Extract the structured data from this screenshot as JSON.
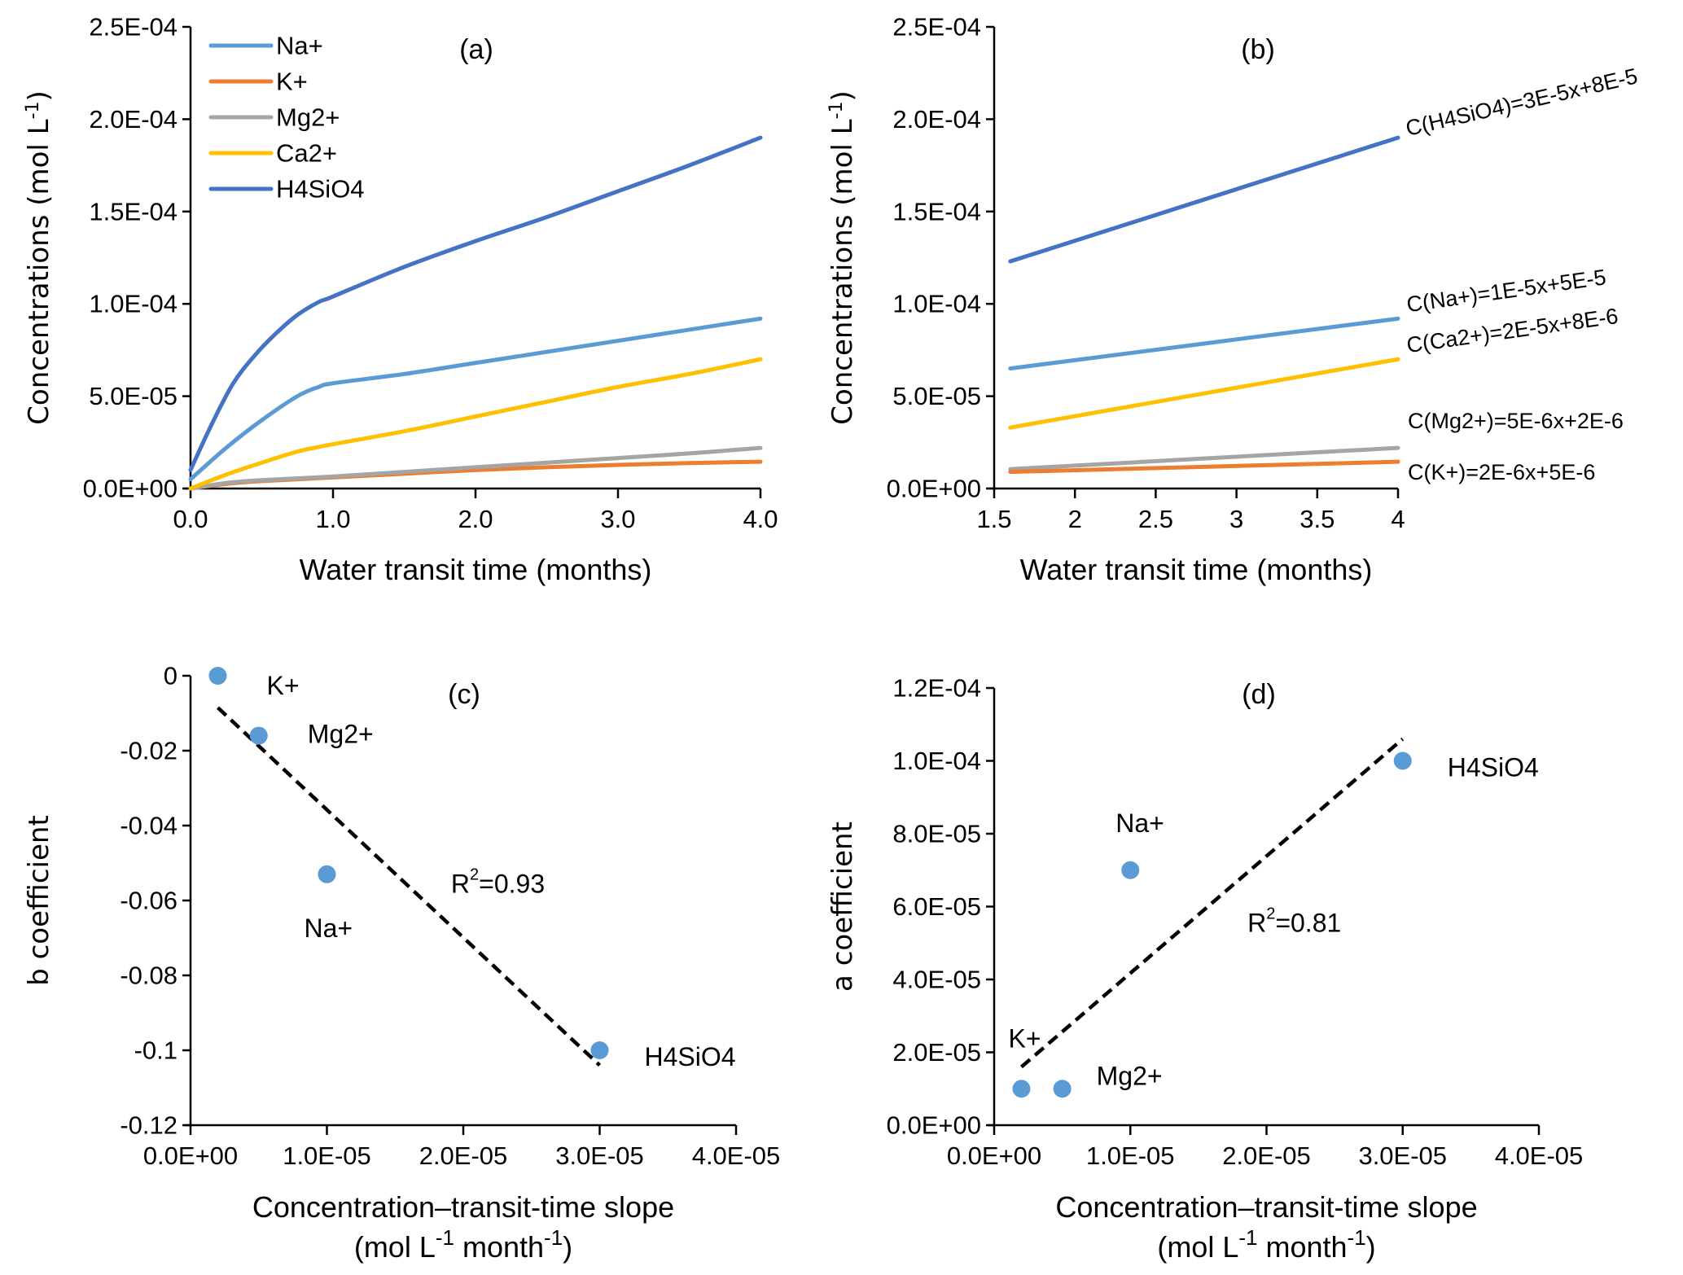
{
  "chart_data": [
    {
      "panel": "(a)",
      "type": "line",
      "title": "(a)",
      "xlabel": "Water transit time (months)",
      "ylabel": "Concentrations (mol L",
      "ylabel_sup": "-1",
      "ylabel_close": ")",
      "xlim": [
        0,
        4
      ],
      "ylim": [
        0,
        0.00025
      ],
      "xticks": [
        0,
        1,
        2,
        3,
        4
      ],
      "xtick_labels": [
        "0.0",
        "1.0",
        "2.0",
        "3.0",
        "4.0"
      ],
      "yticks": [
        0,
        5e-05,
        0.0001,
        0.00015,
        0.0002,
        0.00025
      ],
      "ytick_labels": [
        "0.0E+00",
        "5.0E-05",
        "1.0E-04",
        "1.5E-04",
        "2.0E-04",
        "2.5E-04"
      ],
      "grid": false,
      "legend_position": "top-left",
      "series": [
        {
          "name": "Na+",
          "color": "#5B9BD5",
          "x": [
            0,
            0.25,
            0.5,
            0.75,
            0.9,
            1.0,
            1.5,
            2.0,
            2.5,
            3.0,
            3.5,
            4.0
          ],
          "y": [
            5e-06,
            2.2e-05,
            3.7e-05,
            5e-05,
            5.5e-05,
            5.7e-05,
            6.2e-05,
            6.8e-05,
            7.4e-05,
            8e-05,
            8.6e-05,
            9.2e-05
          ]
        },
        {
          "name": "K+",
          "color": "#ED7D31",
          "x": [
            0,
            0.25,
            0.5,
            1.0,
            1.5,
            2.0,
            2.5,
            3.0,
            3.5,
            4.0
          ],
          "y": [
            0,
            2.5e-06,
            4e-06,
            6e-06,
            8e-06,
            1e-05,
            1.15e-05,
            1.28e-05,
            1.38e-05,
            1.45e-05
          ]
        },
        {
          "name": "Mg2+",
          "color": "#A5A5A5",
          "x": [
            0,
            0.25,
            0.5,
            1.0,
            1.5,
            2.0,
            2.5,
            3.0,
            3.5,
            4.0
          ],
          "y": [
            0,
            3e-06,
            4.5e-06,
            6.5e-06,
            9e-06,
            1.15e-05,
            1.4e-05,
            1.65e-05,
            1.9e-05,
            2.2e-05
          ]
        },
        {
          "name": "Ca2+",
          "color": "#FFC000",
          "x": [
            0,
            0.25,
            0.5,
            0.75,
            0.9,
            1.0,
            1.5,
            2.0,
            2.5,
            3.0,
            3.5,
            4.0
          ],
          "y": [
            0,
            7.5e-06,
            1.4e-05,
            2e-05,
            2.25e-05,
            2.4e-05,
            3.1e-05,
            3.9e-05,
            4.7e-05,
            5.5e-05,
            6.2e-05,
            7e-05
          ]
        },
        {
          "name": "H4SiO4",
          "color": "#4472C4",
          "x": [
            0,
            0.15,
            0.3,
            0.45,
            0.6,
            0.75,
            0.9,
            1.0,
            1.5,
            2.0,
            2.5,
            3.0,
            3.5,
            4.0
          ],
          "y": [
            1e-05,
            3.5e-05,
            5.7e-05,
            7.2e-05,
            8.4e-05,
            9.4e-05,
            0.000101,
            0.000104,
            0.00012,
            0.000134,
            0.000147,
            0.000161,
            0.000175,
            0.00019
          ]
        }
      ]
    },
    {
      "panel": "(b)",
      "type": "line",
      "title": "(b)",
      "xlabel": "Water transit time (months)",
      "ylabel": "Concentrations (mol L",
      "ylabel_sup": "-1",
      "ylabel_close": ")",
      "xlim": [
        1.5,
        4
      ],
      "ylim": [
        0,
        0.00025
      ],
      "xticks": [
        1.5,
        2,
        2.5,
        3,
        3.5,
        4
      ],
      "xtick_labels": [
        "1.5",
        "2",
        "2.5",
        "3",
        "3.5",
        "4"
      ],
      "yticks": [
        0,
        5e-05,
        0.0001,
        0.00015,
        0.0002,
        0.00025
      ],
      "ytick_labels": [
        "0.0E+00",
        "5.0E-05",
        "1.0E-04",
        "1.5E-04",
        "2.0E-04",
        "2.5E-04"
      ],
      "grid": false,
      "series": [
        {
          "name": "H4SiO4",
          "color": "#4472C4",
          "x": [
            1.6,
            4.0
          ],
          "y": [
            0.000123,
            0.00019
          ],
          "equation": "C(H4SiO4)=3E-5x+8E-5"
        },
        {
          "name": "Na+",
          "color": "#5B9BD5",
          "x": [
            1.6,
            4.0
          ],
          "y": [
            6.5e-05,
            9.2e-05
          ],
          "equation": "C(Na+)=1E-5x+5E-5"
        },
        {
          "name": "Ca2+",
          "color": "#FFC000",
          "x": [
            1.6,
            4.0
          ],
          "y": [
            3.3e-05,
            7e-05
          ],
          "equation": "C(Ca2+)=2E-5x+8E-6"
        },
        {
          "name": "Mg2+",
          "color": "#A5A5A5",
          "x": [
            1.6,
            4.0
          ],
          "y": [
            1.05e-05,
            2.2e-05
          ],
          "equation": "C(Mg2+)=5E-6x+2E-6"
        },
        {
          "name": "K+",
          "color": "#ED7D31",
          "x": [
            1.6,
            4.0
          ],
          "y": [
            9e-06,
            1.45e-05
          ],
          "equation": "C(K+)=2E-6x+5E-6"
        }
      ]
    },
    {
      "panel": "(c)",
      "type": "scatter",
      "title": "(c)",
      "xlabel": "Concentration–transit-time slope",
      "xlabel2_pre": "(mol L",
      "xlabel2_sup1": "-1",
      "xlabel2_mid": " month",
      "xlabel2_sup2": "-1",
      "xlabel2_post": ")",
      "ylabel": "b coefficient",
      "xlim": [
        0,
        4e-05
      ],
      "ylim": [
        -0.12,
        0
      ],
      "xticks": [
        0,
        1e-05,
        2e-05,
        3e-05,
        4e-05
      ],
      "xtick_labels": [
        "0.0E+00",
        "1.0E-05",
        "2.0E-05",
        "3.0E-05",
        "4.0E-05"
      ],
      "yticks": [
        0,
        -0.02,
        -0.04,
        -0.06,
        -0.08,
        -0.1,
        -0.12
      ],
      "ytick_labels": [
        "0",
        "-0.02",
        "-0.04",
        "-0.06",
        "-0.08",
        "-0.1",
        "-0.12"
      ],
      "grid": false,
      "marker_color": "#5B9BD5",
      "points": [
        {
          "label": "K+",
          "x": 2e-06,
          "y": 0
        },
        {
          "label": "Mg2+",
          "x": 5e-06,
          "y": -0.016
        },
        {
          "label": "Na+",
          "x": 1e-05,
          "y": -0.053
        },
        {
          "label": "H4SiO4",
          "x": 3e-05,
          "y": -0.1
        }
      ],
      "trendline": {
        "x": [
          2e-06,
          3e-05
        ],
        "y": [
          -0.0085,
          -0.104
        ],
        "style": "dashed",
        "color": "#000000"
      },
      "r2_label": "R",
      "r2_sup": "2",
      "r2_value": "=0.93"
    },
    {
      "panel": "(d)",
      "type": "scatter",
      "title": "(d)",
      "xlabel": "Concentration–transit-time slope",
      "xlabel2_pre": "(mol L",
      "xlabel2_sup1": "-1",
      "xlabel2_mid": " month",
      "xlabel2_sup2": "-1",
      "xlabel2_post": ")",
      "ylabel": "a coefficient",
      "xlim": [
        0,
        4e-05
      ],
      "ylim": [
        0,
        0.00012
      ],
      "xticks": [
        0,
        1e-05,
        2e-05,
        3e-05,
        4e-05
      ],
      "xtick_labels": [
        "0.0E+00",
        "1.0E-05",
        "2.0E-05",
        "3.0E-05",
        "4.0E-05"
      ],
      "yticks": [
        0,
        2e-05,
        4e-05,
        6e-05,
        8e-05,
        0.0001,
        0.00012
      ],
      "ytick_labels": [
        "0.0E+00",
        "2.0E-05",
        "4.0E-05",
        "6.0E-05",
        "8.0E-05",
        "1.0E-04",
        "1.2E-04"
      ],
      "grid": false,
      "marker_color": "#5B9BD5",
      "points": [
        {
          "label": "K+",
          "x": 2e-06,
          "y": 1e-05
        },
        {
          "label": "Mg2+",
          "x": 5e-06,
          "y": 1e-05
        },
        {
          "label": "Na+",
          "x": 1e-05,
          "y": 7e-05
        },
        {
          "label": "H4SiO4",
          "x": 3e-05,
          "y": 0.0001
        }
      ],
      "trendline": {
        "x": [
          2e-06,
          3e-05
        ],
        "y": [
          1.6e-05,
          0.000106
        ],
        "style": "dashed",
        "color": "#000000"
      },
      "r2_label": "R",
      "r2_sup": "2",
      "r2_value": "=0.81"
    }
  ]
}
